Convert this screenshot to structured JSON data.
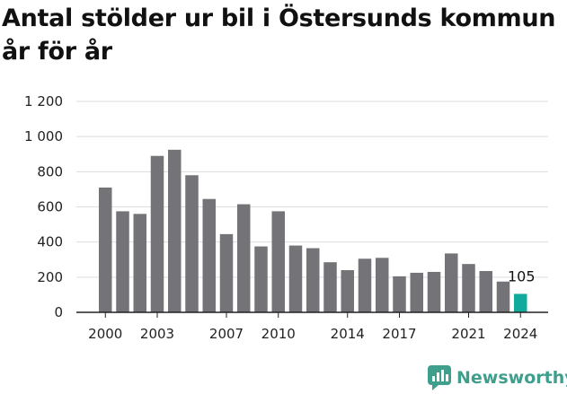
{
  "page": {
    "title": "Antal stölder ur bil i Östersunds kommun år för år",
    "brand": "Newsworthy"
  },
  "colors": {
    "bar": "#747378",
    "highlight": "#11aa9c",
    "grid": "#dddddd",
    "axis": "#222222",
    "brand": "#3f9e8c"
  },
  "chart_data": {
    "type": "bar",
    "title": "Antal stölder ur bil i Östersunds kommun år för år",
    "xlabel": "",
    "ylabel": "",
    "ylim": [
      0,
      1200
    ],
    "y_ticks": [
      0,
      200,
      400,
      600,
      800,
      1000,
      1200
    ],
    "y_tick_labels": [
      "0",
      "200",
      "400",
      "600",
      "800",
      "1 000",
      "1 200"
    ],
    "x_tick_labels": [
      "2000",
      "2003",
      "2007",
      "2010",
      "2014",
      "2017",
      "2021",
      "2024"
    ],
    "grid": "horizontal",
    "categories": [
      "2000",
      "2001",
      "2002",
      "2003",
      "2004",
      "2005",
      "2006",
      "2007",
      "2008",
      "2009",
      "2010",
      "2011",
      "2012",
      "2013",
      "2014",
      "2015",
      "2016",
      "2017",
      "2018",
      "2019",
      "2020",
      "2021",
      "2022",
      "2023",
      "2024"
    ],
    "values": [
      710,
      575,
      560,
      890,
      925,
      780,
      645,
      445,
      615,
      375,
      575,
      380,
      365,
      285,
      240,
      305,
      310,
      205,
      225,
      230,
      335,
      275,
      235,
      175,
      105
    ],
    "highlight_index": 24,
    "annotations": [
      {
        "category": "2024",
        "text": "105"
      }
    ]
  }
}
